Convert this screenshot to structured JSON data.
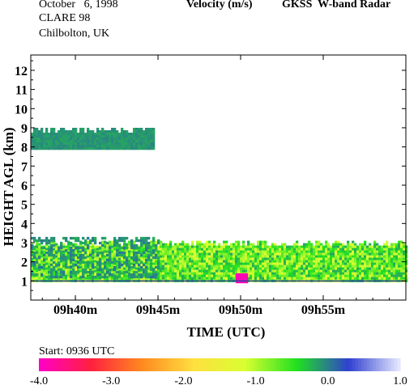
{
  "header": {
    "date": "October   6, 1998",
    "campaign": "CLARE 98",
    "location": "Chilbolton, UK",
    "variable": "Velocity (m/s)",
    "instrument": "GKSS  W-band Radar"
  },
  "chart_data": {
    "type": "heatmap",
    "xlabel": "TIME (UTC)",
    "ylabel": "HEIGHT AGL (km)",
    "start_label": "Start: 0936 UTC",
    "x_range_minutes_after_0936": [
      1.3,
      24
    ],
    "ylim": [
      0,
      12.8
    ],
    "x_ticks": [
      {
        "minute": 4,
        "label": "09h40m"
      },
      {
        "minute": 9,
        "label": "09h45m"
      },
      {
        "minute": 14,
        "label": "09h50m"
      },
      {
        "minute": 19,
        "label": "09h55m"
      }
    ],
    "y_ticks": [
      1,
      2,
      3,
      4,
      5,
      6,
      7,
      8,
      9,
      10,
      11,
      12
    ],
    "colorbar": {
      "range": [
        -4.0,
        1.0
      ],
      "tick_values": [
        -4.0,
        -3.0,
        -2.0,
        -1.0,
        0.0,
        1.0
      ],
      "tick_labels": [
        "-4.0",
        "-3.0",
        "-2.0",
        "-1.0",
        "0.0",
        "1.0"
      ],
      "colors": [
        "#ff00c8",
        "#ff2040",
        "#ff8a20",
        "#ffe040",
        "#d8ff30",
        "#20e020",
        "#3040d0",
        "#e8eaff"
      ]
    },
    "regions": [
      {
        "name": "upper-layer",
        "t_start": 1.3,
        "t_end": 8.8,
        "h_bottom": 7.9,
        "h_top": 9.0,
        "velocity": -0.1
      },
      {
        "name": "lower-layer",
        "t_start": 1.3,
        "t_end": 24,
        "h_bottom": 1.0,
        "h_top": 3.1,
        "velocity": -0.7
      },
      {
        "name": "lower-layer-blue-patch",
        "t_start": 1.3,
        "t_end": 9.0,
        "h_bottom": 1.2,
        "h_top": 3.3,
        "velocity": -0.1
      },
      {
        "name": "fast-fall-patch",
        "t_start": 13.7,
        "t_end": 14.3,
        "h_bottom": 1.0,
        "h_top": 1.4,
        "velocity": -3.9
      }
    ],
    "grid": false
  }
}
